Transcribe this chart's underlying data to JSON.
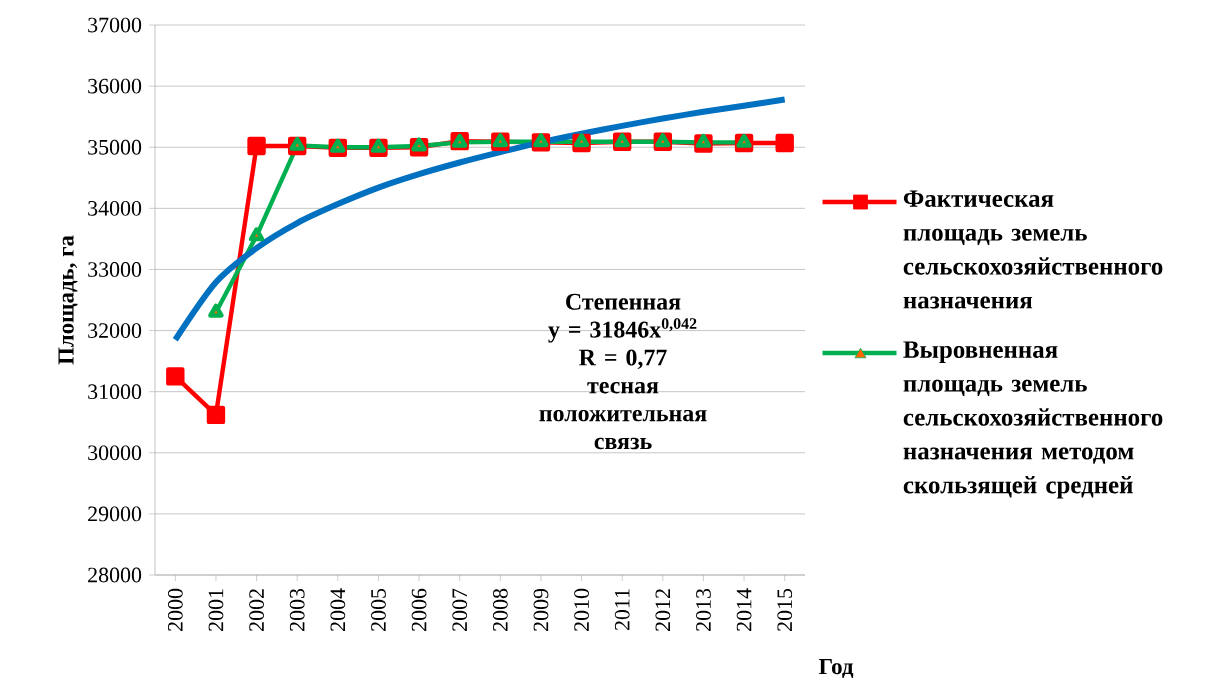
{
  "chart_data": {
    "type": "line",
    "xlabel": "Год",
    "ylabel": "Площадь, га",
    "categories": [
      "2000",
      "2001",
      "2002",
      "2003",
      "2004",
      "2005",
      "2006",
      "2007",
      "2008",
      "2009",
      "2010",
      "2011",
      "2012",
      "2013",
      "2014",
      "2015"
    ],
    "series": [
      {
        "name": "Фактическая площадь земель сельскохозяйственного назначения",
        "color": "#ff0000",
        "marker": "square",
        "values": [
          31250,
          30620,
          35020,
          35020,
          34990,
          34990,
          35000,
          35100,
          35090,
          35080,
          35070,
          35090,
          35090,
          35060,
          35070,
          35070
        ]
      },
      {
        "name": "Выровненная площадь земель сельскохозяйственного назначения методом скользящей средней",
        "color": "#00b050",
        "marker": "triangle",
        "values": [
          null,
          32300,
          33550,
          35030,
          35000,
          35000,
          35020,
          35080,
          35090,
          35090,
          35090,
          35090,
          35090,
          35080,
          35080,
          null
        ]
      },
      {
        "color": "#0070c0",
        "marker": "none",
        "values": [
          31850,
          32790,
          33350,
          33760,
          34070,
          34340,
          34560,
          34750,
          34920,
          35080,
          35220,
          35350,
          35470,
          35580,
          35680,
          35780
        ]
      }
    ],
    "ylim": [
      28000,
      37000
    ],
    "yticks": [
      28000,
      29000,
      30000,
      31000,
      32000,
      33000,
      34000,
      35000,
      36000,
      37000
    ],
    "grid": "y",
    "legend": "right",
    "line_style": "solid",
    "annotations": [
      "Степенная",
      "y = 31846x$^{0,042}$",
      "R = 0,77",
      "тесная положительная связь"
    ]
  }
}
